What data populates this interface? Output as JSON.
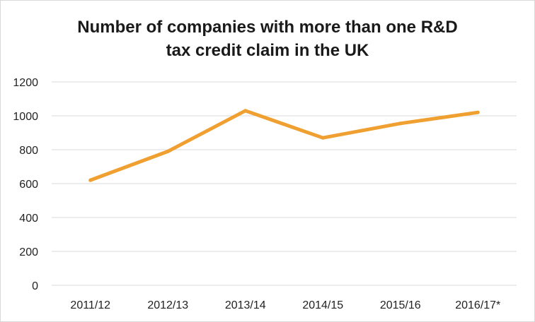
{
  "chart_data": {
    "type": "line",
    "title_lines": [
      "Number of companies with more than one R&D",
      "tax credit claim in the UK"
    ],
    "categories": [
      "2011/12",
      "2012/13",
      "2013/14",
      "2014/15",
      "2015/16",
      "2016/17*"
    ],
    "series": [
      {
        "values": [
          620,
          790,
          1030,
          870,
          955,
          1020
        ],
        "color": "#F0A030"
      }
    ],
    "y_ticks": [
      0,
      200,
      400,
      600,
      800,
      1000,
      1200
    ],
    "ylim": [
      0,
      1200
    ],
    "xlabel": "",
    "ylabel": "",
    "grid": true,
    "legend": "none",
    "grid_color": "#d9d9d9"
  }
}
